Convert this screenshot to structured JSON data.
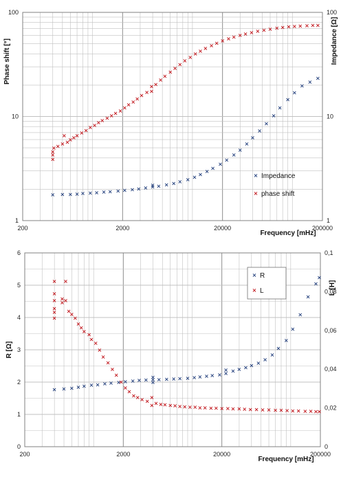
{
  "colors": {
    "impedance": "#1f3c7a",
    "phase": "#c0141a",
    "grid": "#c0c0c0",
    "axis": "#808080"
  },
  "chart_data": [
    {
      "type": "scatter",
      "x_scale": "log",
      "y_scale": "log",
      "xlim": [
        200,
        200000
      ],
      "ylim": [
        1,
        100
      ],
      "y2lim": [
        1,
        100
      ],
      "xlabel": "Frequency [mHz]",
      "ylabel": "Phase shift [°]",
      "y2label": "Impedance [Ω]",
      "x_tick_labels": [
        "200",
        "2000",
        "20000",
        "200000"
      ],
      "y_tick_labels": [
        "1",
        "10",
        "100"
      ],
      "y2_tick_labels": [
        "1",
        "10",
        "100"
      ],
      "grid": true,
      "legend_position": "bottom-right",
      "series": [
        {
          "name": "Impedance",
          "axis": "y2",
          "color": "#1f3c7a",
          "marker": "x",
          "points": [
            [
              400,
              1.78
            ],
            [
              500,
              1.79
            ],
            [
              600,
              1.8
            ],
            [
              700,
              1.81
            ],
            [
              800,
              1.83
            ],
            [
              950,
              1.85
            ],
            [
              1100,
              1.87
            ],
            [
              1300,
              1.89
            ],
            [
              1500,
              1.91
            ],
            [
              1800,
              1.94
            ],
            [
              2100,
              1.97
            ],
            [
              2500,
              2.0
            ],
            [
              2900,
              2.03
            ],
            [
              3400,
              2.07
            ],
            [
              4000,
              2.12
            ],
            [
              4000,
              2.2
            ],
            [
              4600,
              2.16
            ],
            [
              5500,
              2.22
            ],
            [
              6500,
              2.29
            ],
            [
              7500,
              2.37
            ],
            [
              9000,
              2.48
            ],
            [
              10500,
              2.62
            ],
            [
              12000,
              2.78
            ],
            [
              14000,
              2.98
            ],
            [
              16000,
              3.2
            ],
            [
              19000,
              3.5
            ],
            [
              22000,
              3.85
            ],
            [
              26000,
              4.3
            ],
            [
              30000,
              4.8
            ],
            [
              35000,
              5.5
            ],
            [
              40000,
              6.3
            ],
            [
              47000,
              7.3
            ],
            [
              55000,
              8.6
            ],
            [
              65000,
              10.2
            ],
            [
              75000,
              12.2
            ],
            [
              90000,
              14.6
            ],
            [
              105000,
              17.0
            ],
            [
              125000,
              19.8
            ],
            [
              150000,
              21.5
            ],
            [
              180000,
              23.5
            ]
          ]
        },
        {
          "name": "phase shift",
          "axis": "y",
          "color": "#c0141a",
          "marker": "x",
          "points": [
            [
              400,
              3.9
            ],
            [
              400,
              4.3
            ],
            [
              400,
              4.6
            ],
            [
              410,
              5.0
            ],
            [
              450,
              5.2
            ],
            [
              500,
              5.5
            ],
            [
              520,
              6.6
            ],
            [
              560,
              5.7
            ],
            [
              600,
              6.0
            ],
            [
              650,
              6.3
            ],
            [
              700,
              6.6
            ],
            [
              780,
              7.0
            ],
            [
              860,
              7.4
            ],
            [
              950,
              7.9
            ],
            [
              1050,
              8.3
            ],
            [
              1150,
              8.8
            ],
            [
              1250,
              9.2
            ],
            [
              1400,
              9.7
            ],
            [
              1550,
              10.2
            ],
            [
              1700,
              10.8
            ],
            [
              1900,
              11.4
            ],
            [
              2100,
              12.2
            ],
            [
              2300,
              13.0
            ],
            [
              2550,
              13.9
            ],
            [
              2800,
              14.9
            ],
            [
              3100,
              16.0
            ],
            [
              3500,
              17.2
            ],
            [
              3900,
              17.5
            ],
            [
              3900,
              19.5
            ],
            [
              4300,
              20.5
            ],
            [
              4800,
              22.5
            ],
            [
              5300,
              24.6
            ],
            [
              6000,
              26.8
            ],
            [
              6700,
              29.2
            ],
            [
              7500,
              31.8
            ],
            [
              8400,
              34.5
            ],
            [
              9500,
              37.3
            ],
            [
              10700,
              40.1
            ],
            [
              12000,
              42.8
            ],
            [
              13500,
              45.5
            ],
            [
              15500,
              48.2
            ],
            [
              17500,
              50.9
            ],
            [
              20000,
              53.5
            ],
            [
              23000,
              56.0
            ],
            [
              26000,
              58.3
            ],
            [
              30000,
              60.5
            ],
            [
              34000,
              62.6
            ],
            [
              39000,
              64.5
            ],
            [
              45000,
              66.4
            ],
            [
              52000,
              68.0
            ],
            [
              60000,
              69.5
            ],
            [
              70000,
              70.9
            ],
            [
              80000,
              72.0
            ],
            [
              92000,
              73.0
            ],
            [
              105000,
              73.8
            ],
            [
              120000,
              74.4
            ],
            [
              140000,
              74.9
            ],
            [
              160000,
              75.3
            ],
            [
              180000,
              75.5
            ]
          ]
        }
      ]
    },
    {
      "type": "scatter",
      "x_scale": "log",
      "xlim": [
        200,
        200000
      ],
      "ylim": [
        0,
        6
      ],
      "y2lim": [
        0,
        0.1
      ],
      "xlabel": "Frequency [mHz]",
      "ylabel": "R [Ω]",
      "y2label": "L [H]",
      "x_tick_labels": [
        "200",
        "2000",
        "20000",
        "200000"
      ],
      "y_tick_labels": [
        "0",
        "1",
        "2",
        "3",
        "4",
        "5",
        "6"
      ],
      "y2_tick_labels": [
        "0",
        "0,02",
        "0,04",
        "0,06",
        "0,08",
        "0,1"
      ],
      "grid": true,
      "legend_position": "top-right",
      "series": [
        {
          "name": "R",
          "axis": "y",
          "color": "#1f3c7a",
          "marker": "x",
          "points": [
            [
              400,
              1.78
            ],
            [
              500,
              1.8
            ],
            [
              600,
              1.82
            ],
            [
              700,
              1.85
            ],
            [
              800,
              1.88
            ],
            [
              950,
              1.91
            ],
            [
              1100,
              1.93
            ],
            [
              1300,
              1.96
            ],
            [
              1500,
              1.98
            ],
            [
              1800,
              2.0
            ],
            [
              2100,
              2.02
            ],
            [
              2500,
              2.04
            ],
            [
              2900,
              2.06
            ],
            [
              3400,
              2.07
            ],
            [
              4000,
              2.0
            ],
            [
              4000,
              2.08
            ],
            [
              4000,
              2.16
            ],
            [
              4600,
              2.09
            ],
            [
              5500,
              2.1
            ],
            [
              6500,
              2.11
            ],
            [
              7500,
              2.12
            ],
            [
              9000,
              2.13
            ],
            [
              10500,
              2.15
            ],
            [
              12000,
              2.17
            ],
            [
              14000,
              2.19
            ],
            [
              16000,
              2.21
            ],
            [
              19000,
              2.23
            ],
            [
              22000,
              2.28
            ],
            [
              22000,
              2.38
            ],
            [
              26000,
              2.35
            ],
            [
              30000,
              2.4
            ],
            [
              35000,
              2.46
            ],
            [
              40000,
              2.52
            ],
            [
              47000,
              2.6
            ],
            [
              55000,
              2.7
            ],
            [
              65000,
              2.85
            ],
            [
              75000,
              3.05
            ],
            [
              90000,
              3.3
            ],
            [
              105000,
              3.65
            ],
            [
              125000,
              4.1
            ],
            [
              150000,
              4.65
            ],
            [
              180000,
              5.05
            ],
            [
              195000,
              5.25
            ]
          ]
        },
        {
          "name": "L",
          "axis": "y2",
          "color": "#c0141a",
          "marker": "x",
          "points": [
            [
              400,
              0.0855
            ],
            [
              400,
              0.079
            ],
            [
              400,
              0.0755
            ],
            [
              400,
              0.0715
            ],
            [
              400,
              0.0695
            ],
            [
              400,
              0.0665
            ],
            [
              480,
              0.0765
            ],
            [
              480,
              0.0745
            ],
            [
              520,
              0.0855
            ],
            [
              520,
              0.0755
            ],
            [
              560,
              0.07
            ],
            [
              600,
              0.0685
            ],
            [
              650,
              0.0665
            ],
            [
              700,
              0.0635
            ],
            [
              750,
              0.0615
            ],
            [
              800,
              0.0595
            ],
            [
              900,
              0.058
            ],
            [
              950,
              0.0555
            ],
            [
              1050,
              0.0535
            ],
            [
              1150,
              0.05
            ],
            [
              1250,
              0.0465
            ],
            [
              1400,
              0.0435
            ],
            [
              1550,
              0.04
            ],
            [
              1700,
              0.037
            ],
            [
              1900,
              0.0335
            ],
            [
              2100,
              0.0305
            ],
            [
              2300,
              0.0285
            ],
            [
              2550,
              0.0265
            ],
            [
              2800,
              0.0255
            ],
            [
              3100,
              0.0245
            ],
            [
              3500,
              0.0235
            ],
            [
              3900,
              0.0215
            ],
            [
              3900,
              0.0255
            ],
            [
              4300,
              0.0225
            ],
            [
              4800,
              0.022
            ],
            [
              5300,
              0.0218
            ],
            [
              6000,
              0.0215
            ],
            [
              6700,
              0.0212
            ],
            [
              7500,
              0.021
            ],
            [
              8400,
              0.0208
            ],
            [
              9500,
              0.0206
            ],
            [
              10700,
              0.0205
            ],
            [
              12000,
              0.0203
            ],
            [
              13500,
              0.0202
            ],
            [
              15500,
              0.0201
            ],
            [
              17500,
              0.02
            ],
            [
              20000,
              0.0199
            ],
            [
              23000,
              0.0198
            ],
            [
              26000,
              0.0197
            ],
            [
              30000,
              0.0196
            ],
            [
              34000,
              0.0195
            ],
            [
              39000,
              0.0194
            ],
            [
              45000,
              0.0193
            ],
            [
              52000,
              0.0192
            ],
            [
              60000,
              0.0191
            ],
            [
              70000,
              0.019
            ],
            [
              80000,
              0.0189
            ],
            [
              92000,
              0.0188
            ],
            [
              105000,
              0.0187
            ],
            [
              120000,
              0.0186
            ],
            [
              140000,
              0.0185
            ],
            [
              160000,
              0.0184
            ],
            [
              180000,
              0.0183
            ],
            [
              195000,
              0.0182
            ]
          ]
        }
      ]
    }
  ]
}
